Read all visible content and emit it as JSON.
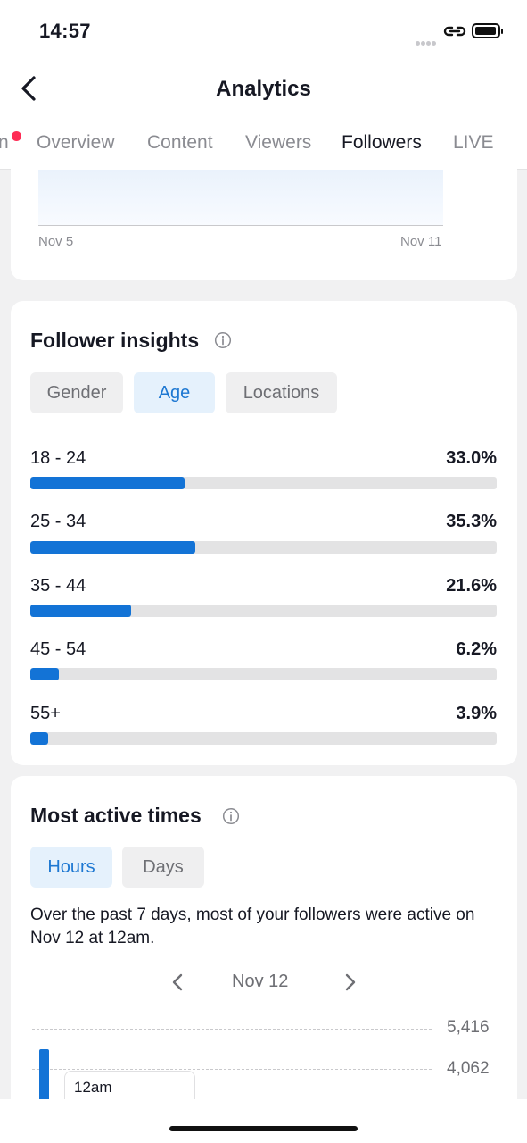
{
  "status_bar": {
    "time": "14:57"
  },
  "header": {
    "title": "Analytics"
  },
  "tabs": [
    {
      "label": "n",
      "has_notification": true
    },
    {
      "label": "Overview"
    },
    {
      "label": "Content"
    },
    {
      "label": "Viewers"
    },
    {
      "label": "Followers",
      "active": true
    },
    {
      "label": "LIVE"
    }
  ],
  "follower_chart": {
    "x_start": "Nov 5",
    "x_end": "Nov 11"
  },
  "follower_insights": {
    "title": "Follower insights",
    "filters": [
      {
        "label": "Gender",
        "selected": false
      },
      {
        "label": "Age",
        "selected": true
      },
      {
        "label": "Locations",
        "selected": false
      }
    ],
    "age_groups": [
      {
        "label": "18 - 24",
        "value": "33.0%",
        "fraction": 0.33
      },
      {
        "label": "25 - 34",
        "value": "35.3%",
        "fraction": 0.353
      },
      {
        "label": "35 - 44",
        "value": "21.6%",
        "fraction": 0.216
      },
      {
        "label": "45 - 54",
        "value": "6.2%",
        "fraction": 0.062
      },
      {
        "label": "55+",
        "value": "3.9%",
        "fraction": 0.039
      }
    ]
  },
  "most_active_times": {
    "title": "Most active times",
    "filters": [
      {
        "label": "Hours",
        "selected": true
      },
      {
        "label": "Days",
        "selected": false
      }
    ],
    "description": "Over the past 7 days, most of your followers were active on Nov 12 at 12am.",
    "date": "Nov 12",
    "y_ticks": [
      "5,416",
      "4,062"
    ],
    "tooltip": "12am"
  },
  "colors": {
    "accent": "#1373d6",
    "notification": "#fe2c55",
    "chip_selected_bg": "#e5f1fc"
  }
}
